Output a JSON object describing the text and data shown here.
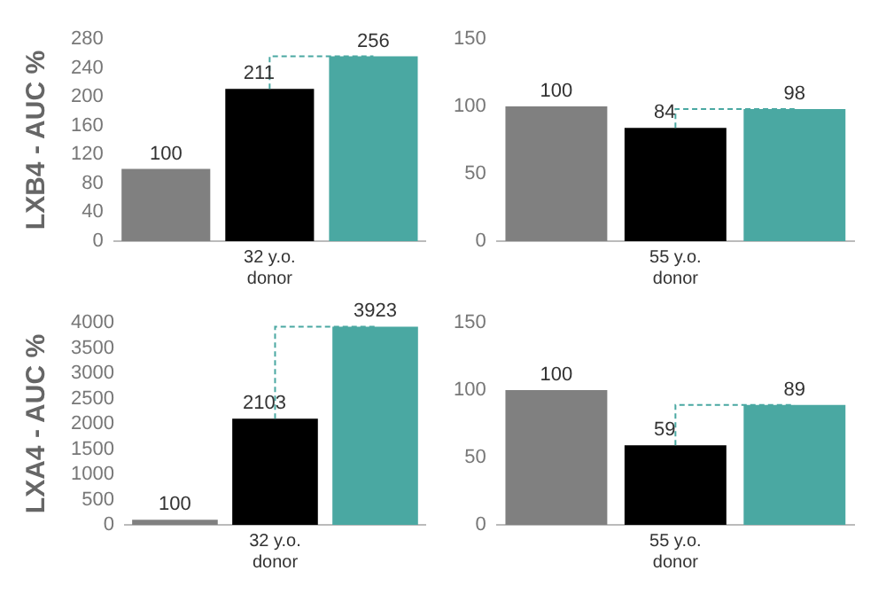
{
  "chart_data": [
    {
      "type": "bar",
      "ylabel": "LXB4 - AUC %",
      "categories": [
        null,
        "32 y.o. donor",
        null
      ],
      "values": [
        100,
        211,
        256
      ],
      "colors": [
        "#808080",
        "#000000",
        "#4aa8a2"
      ],
      "ylim": [
        0,
        280
      ],
      "yticks": [
        0,
        40,
        80,
        120,
        160,
        200,
        240,
        280
      ],
      "grid": false,
      "legend": false,
      "data_labels": true
    },
    {
      "type": "bar",
      "categories": [
        null,
        "55 y.o. donor",
        null
      ],
      "values": [
        100,
        84,
        98
      ],
      "colors": [
        "#808080",
        "#000000",
        "#4aa8a2"
      ],
      "ylim": [
        0,
        150
      ],
      "yticks": [
        0,
        50,
        100,
        150
      ],
      "grid": false,
      "legend": false,
      "data_labels": true
    },
    {
      "type": "bar",
      "ylabel": "LXA4 - AUC %",
      "categories": [
        null,
        "32 y.o. donor",
        null
      ],
      "values": [
        100,
        2103,
        3923
      ],
      "colors": [
        "#808080",
        "#000000",
        "#4aa8a2"
      ],
      "ylim": [
        0,
        4000
      ],
      "yticks": [
        0,
        500,
        1000,
        1500,
        2000,
        2500,
        3000,
        3500,
        4000
      ],
      "grid": false,
      "legend": false,
      "data_labels": true
    },
    {
      "type": "bar",
      "categories": [
        null,
        "55 y.o. donor",
        null
      ],
      "values": [
        100,
        59,
        89
      ],
      "colors": [
        "#808080",
        "#000000",
        "#4aa8a2"
      ],
      "ylim": [
        0,
        150
      ],
      "yticks": [
        0,
        50,
        100,
        150
      ],
      "grid": false,
      "legend": false,
      "data_labels": true
    }
  ]
}
